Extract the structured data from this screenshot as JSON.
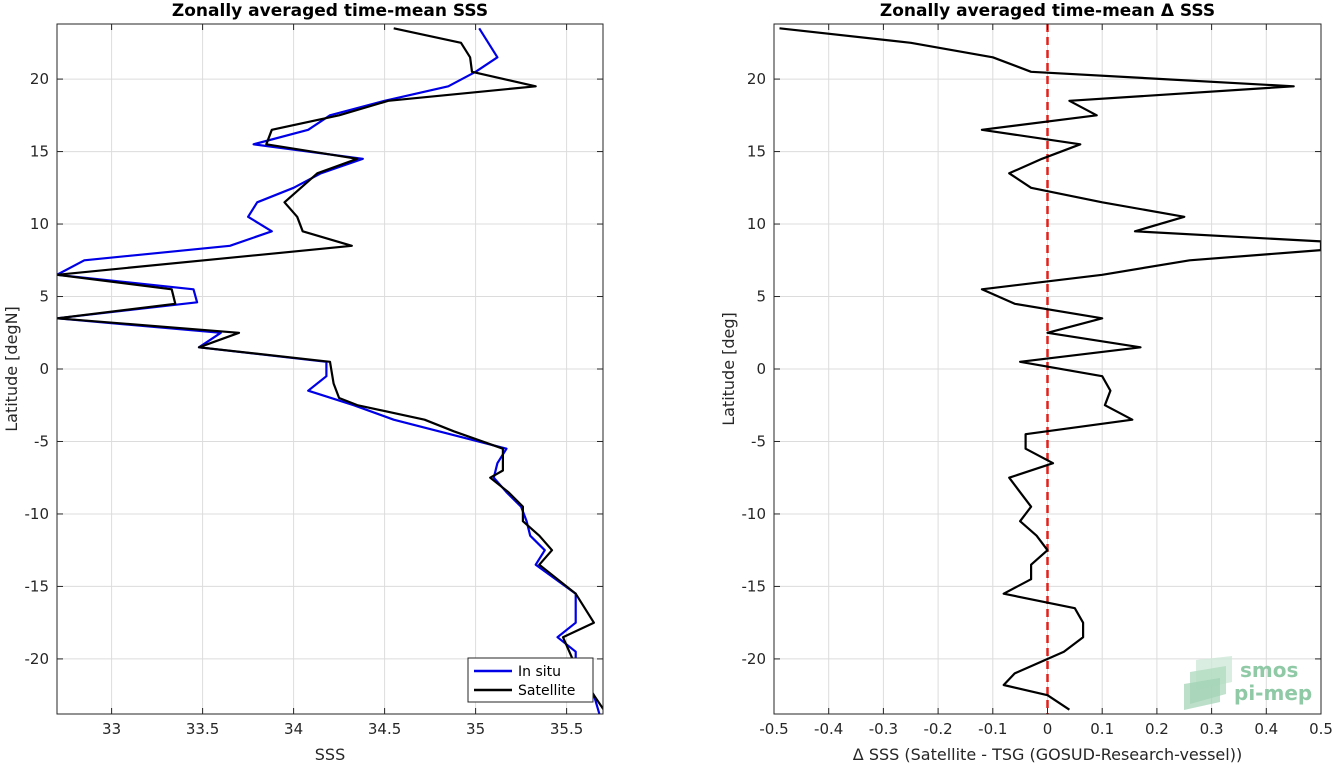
{
  "chart_data": [
    {
      "type": "line",
      "title": "Zonally averaged time-mean SSS",
      "xlabel": "SSS",
      "ylabel": "Latitude [degN]",
      "xlim": [
        32.7,
        35.7
      ],
      "ylim": [
        -23.8,
        23.8
      ],
      "xticks": [
        33,
        33.5,
        34,
        34.5,
        35,
        35.5
      ],
      "yticks": [
        -20,
        -15,
        -10,
        -5,
        0,
        5,
        10,
        15,
        20
      ],
      "grid": true,
      "legend": "bottom-right",
      "series": [
        {
          "name": "In situ",
          "color": "#0000e6",
          "points": [
            [
              35.02,
              23.5
            ],
            [
              35.12,
              21.5
            ],
            [
              35.0,
              20.5
            ],
            [
              34.85,
              19.5
            ],
            [
              34.5,
              18.5
            ],
            [
              34.2,
              17.5
            ],
            [
              34.08,
              16.5
            ],
            [
              33.78,
              15.5
            ],
            [
              34.38,
              14.5
            ],
            [
              34.15,
              13.5
            ],
            [
              34.0,
              12.5
            ],
            [
              33.8,
              11.5
            ],
            [
              33.75,
              10.5
            ],
            [
              33.88,
              9.5
            ],
            [
              33.65,
              8.5
            ],
            [
              32.85,
              7.5
            ],
            [
              32.7,
              6.5
            ],
            [
              33.45,
              5.5
            ],
            [
              33.47,
              4.6
            ],
            [
              32.7,
              3.5
            ],
            [
              33.6,
              2.5
            ],
            [
              33.48,
              1.5
            ],
            [
              34.18,
              0.5
            ],
            [
              34.18,
              -0.5
            ],
            [
              34.08,
              -1.5
            ],
            [
              34.33,
              -2.5
            ],
            [
              34.55,
              -3.5
            ],
            [
              35.17,
              -5.5
            ],
            [
              35.12,
              -6.5
            ],
            [
              35.1,
              -7.5
            ],
            [
              35.17,
              -8.5
            ],
            [
              35.25,
              -9.5
            ],
            [
              35.28,
              -10.5
            ],
            [
              35.3,
              -11.5
            ],
            [
              35.38,
              -12.5
            ],
            [
              35.33,
              -13.5
            ],
            [
              35.55,
              -15.5
            ],
            [
              35.55,
              -17.5
            ],
            [
              35.45,
              -18.5
            ],
            [
              35.55,
              -19.5
            ],
            [
              35.55,
              -20.5
            ],
            [
              35.65,
              -22.5
            ],
            [
              35.68,
              -23.8
            ]
          ]
        },
        {
          "name": "Satellite",
          "color": "#000000",
          "points": [
            [
              34.55,
              23.5
            ],
            [
              34.92,
              22.5
            ],
            [
              34.97,
              21.5
            ],
            [
              34.98,
              20.5
            ],
            [
              35.33,
              19.5
            ],
            [
              34.52,
              18.5
            ],
            [
              34.25,
              17.5
            ],
            [
              33.88,
              16.5
            ],
            [
              33.85,
              15.5
            ],
            [
              34.35,
              14.5
            ],
            [
              34.13,
              13.5
            ],
            [
              33.95,
              11.5
            ],
            [
              34.02,
              10.5
            ],
            [
              34.05,
              9.5
            ],
            [
              34.32,
              8.5
            ],
            [
              32.7,
              6.5
            ],
            [
              33.33,
              5.5
            ],
            [
              33.35,
              4.5
            ],
            [
              32.7,
              3.5
            ],
            [
              33.7,
              2.5
            ],
            [
              33.48,
              1.5
            ],
            [
              34.2,
              0.5
            ],
            [
              34.22,
              -1.0
            ],
            [
              34.25,
              -2.0
            ],
            [
              34.35,
              -2.5
            ],
            [
              34.72,
              -3.5
            ],
            [
              34.88,
              -4.3
            ],
            [
              35.15,
              -5.5
            ],
            [
              35.15,
              -7.0
            ],
            [
              35.08,
              -7.5
            ],
            [
              35.18,
              -8.5
            ],
            [
              35.26,
              -9.5
            ],
            [
              35.26,
              -10.5
            ],
            [
              35.35,
              -11.5
            ],
            [
              35.42,
              -12.5
            ],
            [
              35.35,
              -13.5
            ],
            [
              35.55,
              -15.5
            ],
            [
              35.65,
              -17.5
            ],
            [
              35.48,
              -18.5
            ],
            [
              35.55,
              -20.5
            ],
            [
              35.65,
              -22.5
            ],
            [
              35.72,
              -23.8
            ]
          ]
        }
      ]
    },
    {
      "type": "line",
      "title": "Zonally averaged time-mean Δ SSS",
      "xlabel": "Δ SSS (Satellite - TSG (GOSUD-Research-vessel))",
      "ylabel": "Latitude [deg]",
      "xlim": [
        -0.5,
        0.5
      ],
      "ylim": [
        -23.8,
        23.8
      ],
      "xticks": [
        -0.5,
        -0.4,
        -0.3,
        -0.2,
        -0.1,
        0,
        0.1,
        0.2,
        0.3,
        0.4,
        0.5
      ],
      "yticks": [
        -20,
        -15,
        -10,
        -5,
        0,
        5,
        10,
        15,
        20
      ],
      "grid": true,
      "reference_line": {
        "x": 0,
        "color": "#e0201b",
        "style": "dashed"
      },
      "series": [
        {
          "color": "#000000",
          "points": [
            [
              -0.49,
              23.5
            ],
            [
              -0.25,
              22.5
            ],
            [
              -0.1,
              21.5
            ],
            [
              -0.03,
              20.5
            ],
            [
              0.45,
              19.5
            ],
            [
              0.04,
              18.5
            ],
            [
              0.09,
              17.5
            ],
            [
              -0.12,
              16.5
            ],
            [
              0.06,
              15.5
            ],
            [
              -0.01,
              14.5
            ],
            [
              -0.07,
              13.5
            ],
            [
              -0.03,
              12.5
            ],
            [
              0.1,
              11.5
            ],
            [
              0.25,
              10.5
            ],
            [
              0.16,
              9.5
            ],
            [
              0.5,
              8.8
            ],
            [
              0.5,
              8.2
            ],
            [
              0.26,
              7.5
            ],
            [
              0.1,
              6.5
            ],
            [
              -0.12,
              5.5
            ],
            [
              -0.06,
              4.5
            ],
            [
              0.1,
              3.5
            ],
            [
              0.0,
              2.5
            ],
            [
              0.17,
              1.5
            ],
            [
              -0.05,
              0.5
            ],
            [
              0.1,
              -0.5
            ],
            [
              0.115,
              -1.5
            ],
            [
              0.105,
              -2.5
            ],
            [
              0.155,
              -3.5
            ],
            [
              -0.04,
              -4.5
            ],
            [
              -0.04,
              -5.5
            ],
            [
              0.01,
              -6.5
            ],
            [
              -0.07,
              -7.5
            ],
            [
              -0.05,
              -8.5
            ],
            [
              -0.03,
              -9.5
            ],
            [
              -0.05,
              -10.5
            ],
            [
              -0.02,
              -11.5
            ],
            [
              0.0,
              -12.5
            ],
            [
              -0.03,
              -13.5
            ],
            [
              -0.03,
              -14.5
            ],
            [
              -0.08,
              -15.5
            ],
            [
              0.05,
              -16.5
            ],
            [
              0.065,
              -17.5
            ],
            [
              0.065,
              -18.5
            ],
            [
              0.03,
              -19.5
            ],
            [
              -0.06,
              -21.0
            ],
            [
              -0.08,
              -21.8
            ],
            [
              0.0,
              -22.5
            ],
            [
              0.04,
              -23.5
            ]
          ]
        }
      ]
    }
  ],
  "logo": {
    "line1": "smos",
    "line2": "pi-mep",
    "color": "#8fc9a6"
  }
}
